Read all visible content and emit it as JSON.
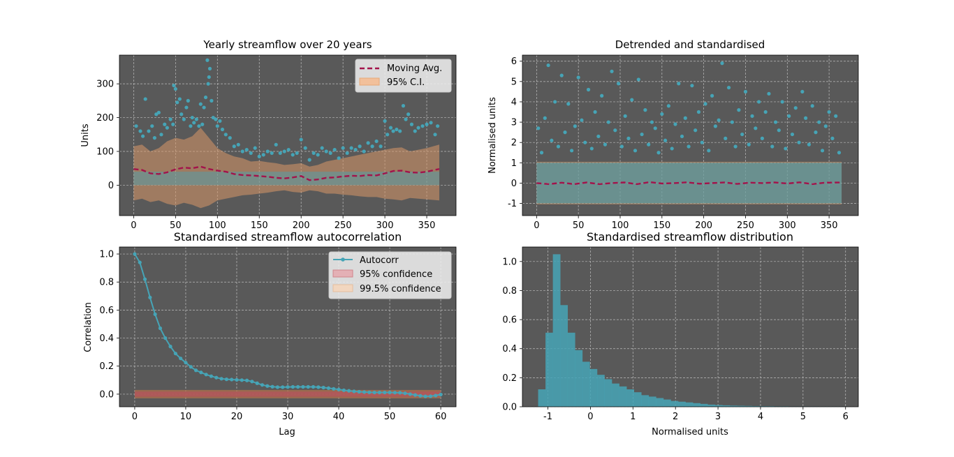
{
  "figure": {
    "background": "#ffffff",
    "axes_facecolor": "#595959",
    "grid_color": "#bdbdbd",
    "teal": "#46a4b6",
    "crimson": "#a3134b",
    "ci_fill": "#d89868",
    "conf95_fill": "#b4545c",
    "conf995_fill": "#b0704c"
  },
  "chart_data": [
    {
      "id": "streamflow",
      "type": "scatter",
      "title": "Yearly streamflow over 20 years",
      "xlabel": "",
      "ylabel": "Units",
      "xlim": [
        -17,
        385
      ],
      "ylim": [
        -90,
        385
      ],
      "xticks": [
        0,
        50,
        100,
        150,
        200,
        250,
        300,
        350
      ],
      "yticks": [
        0,
        100,
        200,
        300
      ],
      "grid": true,
      "legend_position": "top-right",
      "legend": [
        "Moving Avg.",
        "95% C.I."
      ],
      "moving_avg": {
        "name": "Moving Avg.",
        "x": [
          0,
          10,
          20,
          30,
          40,
          50,
          60,
          70,
          80,
          90,
          100,
          110,
          120,
          130,
          140,
          150,
          160,
          170,
          180,
          190,
          200,
          210,
          220,
          230,
          240,
          250,
          260,
          270,
          280,
          290,
          300,
          310,
          320,
          330,
          340,
          350,
          365
        ],
        "y": [
          48,
          45,
          35,
          33,
          38,
          47,
          52,
          50,
          55,
          48,
          43,
          40,
          33,
          30,
          29,
          27,
          25,
          22,
          20,
          23,
          27,
          15,
          17,
          22,
          23,
          26,
          28,
          27,
          30,
          29,
          35,
          42,
          43,
          38,
          37,
          40,
          48
        ]
      },
      "ci_upper": {
        "x": [
          0,
          10,
          20,
          30,
          40,
          50,
          60,
          70,
          80,
          90,
          100,
          110,
          120,
          130,
          140,
          150,
          160,
          170,
          180,
          190,
          200,
          210,
          220,
          230,
          240,
          250,
          260,
          270,
          280,
          290,
          300,
          310,
          320,
          330,
          340,
          350,
          365
        ],
        "y": [
          115,
          120,
          100,
          110,
          130,
          140,
          135,
          145,
          170,
          140,
          110,
          95,
          85,
          80,
          70,
          72,
          68,
          65,
          60,
          62,
          65,
          55,
          60,
          70,
          75,
          80,
          85,
          90,
          95,
          100,
          105,
          110,
          112,
          100,
          105,
          110,
          120
        ]
      },
      "ci_lower": {
        "x": [
          0,
          10,
          20,
          30,
          40,
          50,
          60,
          70,
          80,
          90,
          100,
          110,
          120,
          130,
          140,
          150,
          160,
          170,
          180,
          190,
          200,
          210,
          220,
          230,
          240,
          250,
          260,
          270,
          280,
          290,
          300,
          310,
          320,
          330,
          340,
          350,
          365
        ],
        "y": [
          -45,
          -40,
          -50,
          -45,
          -55,
          -60,
          -52,
          -58,
          -68,
          -60,
          -45,
          -40,
          -35,
          -30,
          -28,
          -25,
          -22,
          -18,
          -15,
          -20,
          -22,
          -15,
          -18,
          -25,
          -25,
          -28,
          -30,
          -33,
          -35,
          -35,
          -40,
          -42,
          -45,
          -38,
          -40,
          -42,
          -45
        ]
      },
      "baseline_band": {
        "y0": 0,
        "y1": 40
      },
      "points": {
        "x": [
          3,
          8,
          11,
          14,
          18,
          22,
          25,
          27,
          30,
          33,
          37,
          40,
          44,
          47,
          48,
          50,
          52,
          55,
          57,
          60,
          63,
          65,
          68,
          70,
          72,
          75,
          78,
          80,
          82,
          84,
          86,
          88,
          89,
          90,
          91,
          93,
          95,
          98,
          100,
          103,
          106,
          110,
          115,
          120,
          125,
          130,
          135,
          140,
          145,
          150,
          155,
          160,
          165,
          170,
          175,
          180,
          185,
          190,
          195,
          200,
          205,
          210,
          215,
          220,
          225,
          230,
          235,
          240,
          245,
          250,
          255,
          260,
          265,
          270,
          275,
          280,
          285,
          290,
          295,
          300,
          303,
          307,
          310,
          314,
          318,
          322,
          325,
          328,
          332,
          336,
          340,
          345,
          350,
          355,
          360,
          363
        ],
        "y": [
          175,
          160,
          145,
          255,
          160,
          175,
          140,
          210,
          215,
          150,
          180,
          170,
          195,
          180,
          295,
          285,
          245,
          255,
          210,
          195,
          230,
          250,
          175,
          200,
          185,
          195,
          175,
          240,
          180,
          230,
          260,
          370,
          300,
          320,
          345,
          250,
          200,
          195,
          175,
          190,
          165,
          150,
          140,
          115,
          120,
          100,
          105,
          95,
          110,
          85,
          90,
          100,
          95,
          120,
          95,
          100,
          105,
          90,
          95,
          135,
          110,
          75,
          95,
          90,
          110,
          100,
          95,
          105,
          80,
          110,
          95,
          110,
          105,
          115,
          100,
          125,
          115,
          130,
          115,
          190,
          150,
          170,
          160,
          165,
          160,
          235,
          195,
          210,
          180,
          160,
          170,
          175,
          180,
          185,
          150,
          175
        ]
      }
    },
    {
      "id": "detrended",
      "type": "scatter",
      "title": "Detrended and standardised",
      "xlabel": "",
      "ylabel": "Normalised units",
      "xlim": [
        -17,
        385
      ],
      "ylim": [
        -1.6,
        6.3
      ],
      "xticks": [
        0,
        50,
        100,
        150,
        200,
        250,
        300,
        350
      ],
      "yticks": [
        -1,
        0,
        1,
        2,
        3,
        4,
        5,
        6
      ],
      "grid": true,
      "band": {
        "y0": -1.05,
        "y1": 1.05
      },
      "moving_avg": {
        "x": [
          0,
          15,
          30,
          45,
          60,
          75,
          90,
          105,
          120,
          135,
          150,
          165,
          180,
          195,
          210,
          225,
          240,
          255,
          270,
          285,
          300,
          315,
          330,
          345,
          365
        ],
        "y": [
          0.0,
          -0.05,
          0.02,
          -0.05,
          0.03,
          -0.05,
          0.0,
          0.03,
          -0.05,
          0.05,
          -0.02,
          0.0,
          0.04,
          -0.03,
          0.0,
          0.03,
          -0.04,
          0.02,
          0.0,
          0.03,
          -0.02,
          0.04,
          -0.05,
          0.02,
          0.03
        ]
      },
      "points": {
        "x": [
          2,
          6,
          10,
          14,
          18,
          22,
          26,
          30,
          34,
          38,
          42,
          46,
          50,
          54,
          58,
          62,
          66,
          70,
          74,
          78,
          82,
          86,
          90,
          94,
          98,
          102,
          106,
          110,
          114,
          118,
          122,
          126,
          130,
          134,
          138,
          142,
          146,
          150,
          154,
          158,
          162,
          166,
          170,
          174,
          178,
          182,
          186,
          190,
          194,
          198,
          202,
          206,
          210,
          214,
          218,
          222,
          226,
          230,
          234,
          238,
          242,
          246,
          250,
          254,
          258,
          262,
          266,
          270,
          274,
          278,
          282,
          286,
          290,
          294,
          298,
          302,
          306,
          310,
          314,
          318,
          322,
          326,
          330,
          334,
          338,
          342,
          346,
          350,
          354,
          358,
          362
        ],
        "y": [
          2.7,
          1.5,
          3.2,
          5.8,
          2.1,
          4.0,
          1.8,
          5.3,
          2.5,
          3.9,
          1.6,
          2.8,
          5.2,
          3.1,
          2.0,
          4.6,
          1.7,
          3.5,
          2.3,
          4.3,
          1.9,
          3.0,
          5.5,
          2.6,
          4.9,
          1.8,
          3.3,
          2.2,
          4.1,
          1.6,
          5.1,
          2.4,
          3.6,
          1.9,
          3.0,
          2.7,
          1.5,
          3.4,
          2.1,
          3.8,
          1.7,
          2.9,
          4.9,
          2.3,
          3.2,
          1.8,
          4.8,
          2.6,
          3.5,
          2.0,
          3.9,
          1.6,
          4.3,
          2.8,
          3.1,
          5.9,
          2.2,
          4.7,
          3.0,
          1.8,
          3.6,
          2.4,
          4.5,
          1.9,
          3.3,
          2.7,
          4.0,
          2.2,
          3.5,
          4.4,
          1.8,
          3.0,
          2.6,
          4.0,
          1.7,
          3.3,
          2.4,
          3.7,
          2.0,
          4.5,
          3.2,
          1.9,
          3.8,
          2.5,
          3.0,
          1.6,
          2.8,
          3.5,
          2.2,
          3.3,
          1.5
        ]
      }
    },
    {
      "id": "autocorrelation",
      "type": "line",
      "title": "Standardised streamflow autocorrelation",
      "xlabel": "Lag",
      "ylabel": "Correlation",
      "xlim": [
        -3,
        63
      ],
      "ylim": [
        -0.09,
        1.05
      ],
      "xticks": [
        0,
        10,
        20,
        30,
        40,
        50,
        60
      ],
      "yticks": [
        0.0,
        0.2,
        0.4,
        0.6,
        0.8,
        1.0
      ],
      "grid": true,
      "legend_position": "top-right",
      "legend": [
        "Autocorr",
        "95% confidence",
        "99.5% confidence"
      ],
      "conf95": [
        -0.018,
        0.018
      ],
      "conf995": [
        -0.03,
        0.03
      ],
      "series": [
        {
          "name": "Autocorr",
          "x": [
            0,
            1,
            2,
            3,
            4,
            5,
            6,
            7,
            8,
            9,
            10,
            11,
            12,
            13,
            14,
            15,
            16,
            17,
            18,
            19,
            20,
            21,
            22,
            23,
            24,
            25,
            26,
            27,
            28,
            29,
            30,
            31,
            32,
            33,
            34,
            35,
            36,
            37,
            38,
            39,
            40,
            41,
            42,
            43,
            44,
            45,
            46,
            47,
            48,
            49,
            50,
            51,
            52,
            53,
            54,
            55,
            56,
            57,
            58,
            59,
            60
          ],
          "values": [
            1.0,
            0.94,
            0.82,
            0.69,
            0.57,
            0.47,
            0.4,
            0.34,
            0.29,
            0.255,
            0.225,
            0.195,
            0.17,
            0.155,
            0.14,
            0.128,
            0.118,
            0.11,
            0.106,
            0.104,
            0.102,
            0.1,
            0.098,
            0.09,
            0.078,
            0.066,
            0.058,
            0.053,
            0.05,
            0.05,
            0.051,
            0.052,
            0.052,
            0.052,
            0.052,
            0.052,
            0.05,
            0.047,
            0.043,
            0.038,
            0.033,
            0.028,
            0.024,
            0.02,
            0.017,
            0.015,
            0.013,
            0.012,
            0.012,
            0.012,
            0.012,
            0.011,
            0.01,
            0.006,
            0.0,
            -0.006,
            -0.012,
            -0.016,
            -0.015,
            -0.01,
            -0.003
          ]
        }
      ]
    },
    {
      "id": "distribution",
      "type": "bar",
      "title": "Standardised streamflow distribution",
      "xlabel": "Normalised units",
      "ylabel": "",
      "xlim": [
        -1.6,
        6.3
      ],
      "ylim": [
        0,
        1.1
      ],
      "xticks": [
        -1,
        0,
        1,
        2,
        3,
        4,
        5,
        6
      ],
      "yticks": [
        0.0,
        0.2,
        0.4,
        0.6,
        0.8,
        1.0
      ],
      "grid": true,
      "bin_start": -1.23,
      "bin_width": 0.1733,
      "values": [
        0.12,
        0.51,
        1.05,
        0.7,
        0.51,
        0.39,
        0.31,
        0.26,
        0.22,
        0.19,
        0.16,
        0.14,
        0.12,
        0.1,
        0.08,
        0.07,
        0.06,
        0.05,
        0.04,
        0.035,
        0.03,
        0.025,
        0.02,
        0.015,
        0.012,
        0.01,
        0.008,
        0.007,
        0.006,
        0.005,
        0.004,
        0.004,
        0.003,
        0.003,
        0.002,
        0.002,
        0.002,
        0.002,
        0.001,
        0.001,
        0.001,
        0.001
      ]
    }
  ]
}
